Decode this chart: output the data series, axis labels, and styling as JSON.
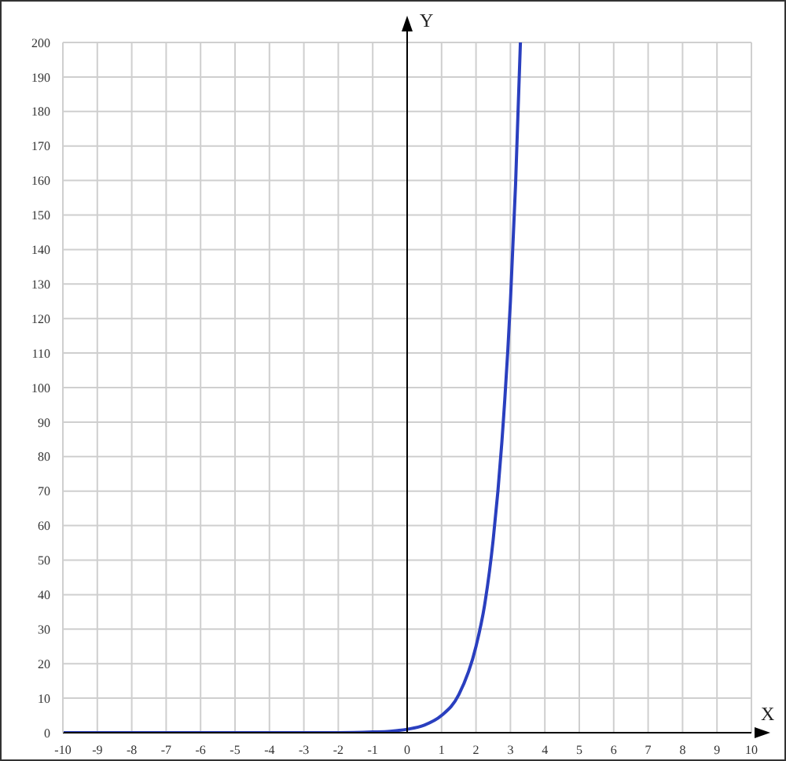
{
  "chart_data": {
    "type": "line",
    "xlabel": "X",
    "ylabel": "Y",
    "x": [
      -10,
      -8,
      -6,
      -4,
      -3,
      -2,
      -1,
      -0.5,
      0,
      0.5,
      1,
      1.5,
      2,
      2.25,
      2.5,
      2.75,
      3,
      3.15,
      3.29
    ],
    "series": [
      {
        "color": "#2a3fbf",
        "values": [
          0,
          0,
          0,
          0,
          0,
          0,
          0.2,
          0.4,
          1,
          2.2,
          5,
          11,
          25,
          37,
          56,
          84,
          125,
          159,
          200
        ]
      }
    ],
    "xlim": [
      -10,
      10
    ],
    "xticks": [
      -10,
      -9,
      -8,
      -7,
      -6,
      -5,
      -4,
      -3,
      -2,
      -1,
      0,
      1,
      2,
      3,
      4,
      5,
      6,
      7,
      8,
      9,
      10
    ],
    "ylim": [
      0,
      200
    ],
    "yticks": [
      0,
      10,
      20,
      30,
      40,
      50,
      60,
      70,
      80,
      90,
      100,
      110,
      120,
      130,
      140,
      150,
      160,
      170,
      180,
      190,
      200
    ],
    "grid": true,
    "marker": "none",
    "line_style": "solid",
    "legend": false
  }
}
